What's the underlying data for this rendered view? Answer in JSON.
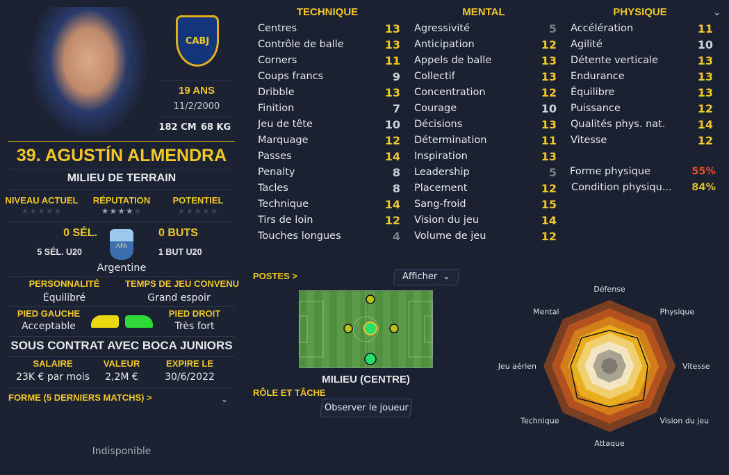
{
  "player": {
    "name": "39. AGUSTÍN ALMENDRA",
    "position": "MILIEU DE TERRAIN",
    "age": "19 ANS",
    "birthdate": "11/2/2000",
    "height": "182 CM",
    "weight": "68 KG",
    "club_badge": "CABJ"
  },
  "ratings": [
    {
      "label": "NIVEAU ACTUEL",
      "stars": 0
    },
    {
      "label": "RÉPUTATION",
      "stars": 4
    },
    {
      "label": "POTENTIEL",
      "stars": 0
    }
  ],
  "international": {
    "caps": "0 SÉL.",
    "goals": "0 BUTS",
    "u20_caps": "5 SÉL. U20",
    "u20_goals": "1 BUT U20",
    "nation": "Argentine",
    "badge": "AFA"
  },
  "personality": {
    "label": "PERSONNALITÉ",
    "value": "Équilibré"
  },
  "playing_time": {
    "label": "TEMPS DE JEU CONVENU",
    "value": "Grand espoir"
  },
  "left_foot": {
    "label": "PIED GAUCHE",
    "value": "Acceptable"
  },
  "right_foot": {
    "label": "PIED DROIT",
    "value": "Très fort"
  },
  "contract": {
    "title": "SOUS CONTRAT AVEC BOCA JUNIORS",
    "salary_label": "SALAIRE",
    "salary": "23K € par mois",
    "value_label": "VALEUR",
    "value": "2,2M €",
    "expires_label": "EXPIRE LE",
    "expires": "30/6/2022"
  },
  "form": {
    "label": "FORME (5 DERNIERS MATCHS) >",
    "status": "Indisponible"
  },
  "columns": [
    {
      "title": "TECHNIQUE",
      "attrs": [
        [
          "Centres",
          13
        ],
        [
          "Contrôle de balle",
          13
        ],
        [
          "Corners",
          11
        ],
        [
          "Coups francs",
          9
        ],
        [
          "Dribble",
          13
        ],
        [
          "Finition",
          7
        ],
        [
          "Jeu de tête",
          10
        ],
        [
          "Marquage",
          12
        ],
        [
          "Passes",
          14
        ],
        [
          "Penalty",
          8
        ],
        [
          "Tacles",
          8
        ],
        [
          "Technique",
          14
        ],
        [
          "Tirs de loin",
          12
        ],
        [
          "Touches longues",
          4
        ]
      ]
    },
    {
      "title": "MENTAL",
      "attrs": [
        [
          "Agressivité",
          5
        ],
        [
          "Anticipation",
          12
        ],
        [
          "Appels de balle",
          13
        ],
        [
          "Collectif",
          13
        ],
        [
          "Concentration",
          12
        ],
        [
          "Courage",
          10
        ],
        [
          "Décisions",
          13
        ],
        [
          "Détermination",
          11
        ],
        [
          "Inspiration",
          13
        ],
        [
          "Leadership",
          5
        ],
        [
          "Placement",
          12
        ],
        [
          "Sang-froid",
          15
        ],
        [
          "Vision du jeu",
          14
        ],
        [
          "Volume de jeu",
          12
        ]
      ]
    },
    {
      "title": "PHYSIQUE",
      "attrs": [
        [
          "Accélération",
          11
        ],
        [
          "Agilité",
          10
        ],
        [
          "Détente verticale",
          13
        ],
        [
          "Endurance",
          13
        ],
        [
          "Équilibre",
          13
        ],
        [
          "Puissance",
          12
        ],
        [
          "Qualités phys. nat.",
          14
        ],
        [
          "Vitesse",
          12
        ]
      ]
    }
  ],
  "fitness": {
    "label": "Forme physique",
    "value": "55%",
    "color": "#e0502a"
  },
  "condition": {
    "label": "Condition physiqu...",
    "value": "84%",
    "color": "#d8c030"
  },
  "positions": {
    "label": "POSTES >",
    "show_button": "Afficher",
    "position_name": "MILIEU (CENTRE)",
    "role_label": "RÔLE ET TÂCHE",
    "observe_button": "Observer le joueur"
  },
  "radar": {
    "axes": [
      "Défense",
      "Physique",
      "Vitesse",
      "Vision du jeu",
      "Attaque",
      "Technique",
      "Jeu aérien",
      "Mental"
    ],
    "player_levels": [
      0.54,
      0.6,
      0.58,
      0.73,
      0.62,
      0.69,
      0.59,
      0.6
    ],
    "ring_colors": [
      "#7a3f22",
      "#b4521f",
      "#d27f1b",
      "#e8ae1f",
      "#f0cf6e",
      "#f4e5c2",
      "#a9a391",
      "#7e7a70"
    ]
  },
  "colors": {
    "accent": "#f2c72a",
    "high": "#f2c72a",
    "mid": "#cfd3da",
    "low": "#7a7f88",
    "natural": "#25e06a",
    "accomplished": "#b8c010"
  }
}
